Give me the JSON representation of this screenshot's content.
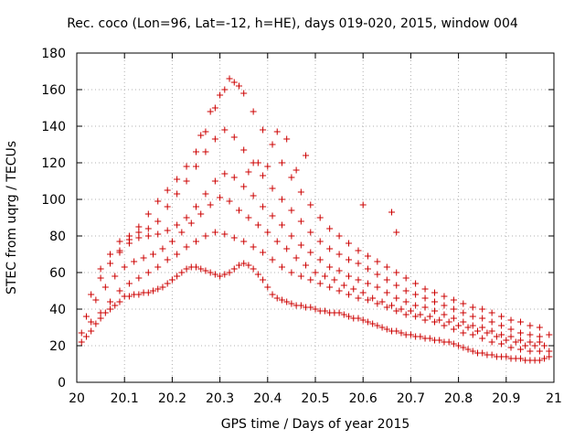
{
  "chart_data": {
    "type": "scatter",
    "title": "Rec. coco (Lon=96, Lat=-12, h=HE), days 019-020, 2015, window 004",
    "xlabel": "GPS time / Days of year 2015",
    "ylabel": "STEC from uqrg / TECUs",
    "xlim": [
      20,
      21
    ],
    "ylim": [
      0,
      180
    ],
    "xticks": [
      "20",
      "20.1",
      "20.2",
      "20.3",
      "20.4",
      "20.5",
      "20.6",
      "20.7",
      "20.8",
      "20.9",
      "21"
    ],
    "yticks": [
      "0",
      "20",
      "40",
      "60",
      "80",
      "100",
      "120",
      "140",
      "160",
      "180"
    ],
    "grid": true,
    "marker": "+",
    "marker_color": "#cc0000",
    "series": [
      {
        "name": "",
        "x": [
          20.01,
          20.02,
          20.03,
          20.04,
          20.05,
          20.06,
          20.07,
          20.08,
          20.09,
          20.1,
          20.11,
          20.12,
          20.13,
          20.14,
          20.15,
          20.16,
          20.17,
          20.18,
          20.19,
          20.2,
          20.21,
          20.22,
          20.23,
          20.24,
          20.25,
          20.26,
          20.27,
          20.28,
          20.29,
          20.3,
          20.31,
          20.32,
          20.33,
          20.34,
          20.35,
          20.36,
          20.37,
          20.38,
          20.39,
          20.4,
          20.41,
          20.42,
          20.43,
          20.44,
          20.45,
          20.46,
          20.47,
          20.48,
          20.49,
          20.5,
          20.51,
          20.52,
          20.53,
          20.54,
          20.55,
          20.56,
          20.57,
          20.58,
          20.59,
          20.6,
          20.61,
          20.62,
          20.63,
          20.64,
          20.65,
          20.66,
          20.67,
          20.68,
          20.69,
          20.7,
          20.71,
          20.72,
          20.73,
          20.74,
          20.75,
          20.76,
          20.77,
          20.78,
          20.79,
          20.8,
          20.81,
          20.82,
          20.83,
          20.84,
          20.85,
          20.86,
          20.87,
          20.88,
          20.89,
          20.9,
          20.91,
          20.92,
          20.93,
          20.94,
          20.95,
          20.96,
          20.97,
          20.98,
          20.99
        ],
        "y": [
          22,
          25,
          28,
          32,
          35,
          38,
          40,
          42,
          44,
          47,
          47,
          48,
          48,
          49,
          49,
          50,
          51,
          52,
          54,
          56,
          58,
          60,
          62,
          63,
          63,
          62,
          61,
          60,
          59,
          58,
          59,
          60,
          62,
          64,
          65,
          64,
          62,
          59,
          56,
          52,
          48,
          46,
          45,
          44,
          43,
          42,
          42,
          41,
          41,
          40,
          39,
          39,
          38,
          38,
          38,
          37,
          36,
          35,
          35,
          34,
          33,
          32,
          31,
          30,
          29,
          28,
          28,
          27,
          26,
          26,
          25,
          25,
          24,
          24,
          23,
          23,
          22,
          22,
          21,
          20,
          19,
          18,
          17,
          16,
          16,
          15,
          15,
          14,
          14,
          14,
          13,
          13,
          13,
          12,
          12,
          12,
          12,
          13,
          14
        ]
      },
      {
        "name": "",
        "x": [
          20.01,
          20.03,
          20.05,
          20.07,
          20.09,
          20.11,
          20.13,
          20.15,
          20.17,
          20.19,
          20.21,
          20.23,
          20.25,
          20.27,
          20.29,
          20.31,
          20.33,
          20.35,
          20.37,
          20.39,
          20.41,
          20.43,
          20.45,
          20.47,
          20.49,
          20.51,
          20.53,
          20.55,
          20.57,
          20.59,
          20.61,
          20.63,
          20.65,
          20.67,
          20.69,
          20.71,
          20.73,
          20.75,
          20.77,
          20.79,
          20.81,
          20.83,
          20.85,
          20.87,
          20.89,
          20.91,
          20.93,
          20.95,
          20.97,
          20.99
        ],
        "y": [
          27,
          33,
          38,
          44,
          50,
          54,
          57,
          60,
          63,
          67,
          70,
          74,
          77,
          80,
          82,
          81,
          79,
          77,
          74,
          71,
          67,
          63,
          60,
          58,
          56,
          54,
          52,
          50,
          48,
          46,
          45,
          43,
          41,
          39,
          37,
          36,
          34,
          33,
          31,
          29,
          27,
          26,
          24,
          22,
          21,
          19,
          18,
          17,
          17,
          17
        ]
      },
      {
        "name": "",
        "x": [
          20.02,
          20.04,
          20.06,
          20.08,
          20.1,
          20.12,
          20.14,
          20.16,
          20.18,
          20.2,
          20.22,
          20.24,
          20.26,
          20.28,
          20.3,
          20.32,
          20.34,
          20.36,
          20.38,
          20.4,
          20.42,
          20.44,
          20.46,
          20.48,
          20.5,
          20.52,
          20.54,
          20.56,
          20.58,
          20.6,
          20.62,
          20.64,
          20.66,
          20.68,
          20.7,
          20.72,
          20.74,
          20.76,
          20.78,
          20.8,
          20.82,
          20.84,
          20.86,
          20.88,
          20.9,
          20.92,
          20.94,
          20.96,
          20.98
        ],
        "y": [
          36,
          45,
          52,
          58,
          63,
          66,
          68,
          70,
          73,
          77,
          82,
          87,
          92,
          97,
          101,
          99,
          94,
          90,
          86,
          82,
          77,
          73,
          68,
          64,
          60,
          58,
          56,
          53,
          51,
          49,
          46,
          44,
          42,
          40,
          39,
          37,
          36,
          34,
          33,
          31,
          30,
          28,
          27,
          25,
          23,
          22,
          20,
          20,
          20
        ]
      },
      {
        "name": "",
        "x": [
          20.03,
          20.05,
          20.07,
          20.09,
          20.11,
          20.13,
          20.15,
          20.17,
          20.19,
          20.21,
          20.23,
          20.25,
          20.27,
          20.29,
          20.31,
          20.33,
          20.35,
          20.37,
          20.39,
          20.41,
          20.43,
          20.45,
          20.47,
          20.49,
          20.51,
          20.53,
          20.55,
          20.57,
          20.59,
          20.61,
          20.63,
          20.65,
          20.67,
          20.69,
          20.71,
          20.73,
          20.75,
          20.77,
          20.79,
          20.81,
          20.83,
          20.85,
          20.87,
          20.89,
          20.91,
          20.93,
          20.95,
          20.97
        ],
        "y": [
          48,
          57,
          65,
          71,
          76,
          79,
          80,
          81,
          83,
          86,
          90,
          96,
          103,
          110,
          114,
          112,
          107,
          102,
          96,
          91,
          86,
          80,
          75,
          71,
          67,
          63,
          61,
          58,
          56,
          54,
          52,
          49,
          46,
          44,
          42,
          41,
          39,
          37,
          35,
          33,
          31,
          30,
          28,
          26,
          25,
          23,
          22,
          22
        ]
      },
      {
        "name": "",
        "x": [
          20.05,
          20.07,
          20.09,
          20.11,
          20.13,
          20.15,
          20.17,
          20.19,
          20.21,
          20.23,
          20.25,
          20.27,
          20.29,
          20.31,
          20.33,
          20.35,
          20.37,
          20.39,
          20.41,
          20.43,
          20.45,
          20.47,
          20.49,
          20.51,
          20.53,
          20.55,
          20.57,
          20.59,
          20.61,
          20.63,
          20.65,
          20.67,
          20.69,
          20.71,
          20.73,
          20.75,
          20.77,
          20.79,
          20.81,
          20.83,
          20.85,
          20.87,
          20.89,
          20.91,
          20.93,
          20.95,
          20.97,
          20.99
        ],
        "y": [
          62,
          70,
          77,
          80,
          82,
          84,
          88,
          96,
          103,
          110,
          118,
          126,
          133,
          138,
          134,
          127,
          120,
          113,
          106,
          100,
          94,
          88,
          82,
          77,
          73,
          70,
          67,
          65,
          62,
          59,
          56,
          53,
          50,
          48,
          46,
          44,
          42,
          40,
          38,
          36,
          35,
          33,
          31,
          29,
          27,
          26,
          25,
          26
        ]
      },
      {
        "name": "",
        "x": [
          20.09,
          20.11,
          20.13,
          20.15,
          20.17,
          20.19,
          20.21,
          20.23,
          20.25,
          20.27,
          20.29,
          20.31,
          20.33,
          20.35,
          20.37,
          20.39,
          20.41,
          20.43,
          20.45,
          20.47,
          20.49,
          20.51,
          20.53,
          20.55,
          20.57,
          20.59,
          20.61,
          20.63,
          20.65,
          20.67,
          20.69,
          20.71,
          20.73,
          20.75,
          20.77,
          20.79,
          20.81,
          20.83,
          20.85,
          20.87,
          20.89,
          20.91,
          20.93,
          20.95,
          20.97
        ],
        "y": [
          72,
          78,
          85,
          92,
          99,
          105,
          111,
          118,
          126,
          137,
          150,
          160,
          164,
          158,
          148,
          138,
          130,
          120,
          112,
          104,
          97,
          90,
          84,
          80,
          76,
          72,
          69,
          66,
          63,
          60,
          57,
          54,
          51,
          49,
          47,
          45,
          43,
          41,
          40,
          38,
          36,
          34,
          33,
          31,
          30
        ]
      },
      {
        "name": "",
        "x": [
          20.26,
          20.28,
          20.3,
          20.32,
          20.34,
          20.36,
          20.38,
          20.4,
          20.42,
          20.44,
          20.46,
          20.48,
          20.6,
          20.66,
          20.67
        ],
        "y": [
          135,
          148,
          157,
          166,
          162,
          115,
          120,
          118,
          137,
          133,
          116,
          124,
          97,
          93,
          82
        ]
      }
    ]
  }
}
